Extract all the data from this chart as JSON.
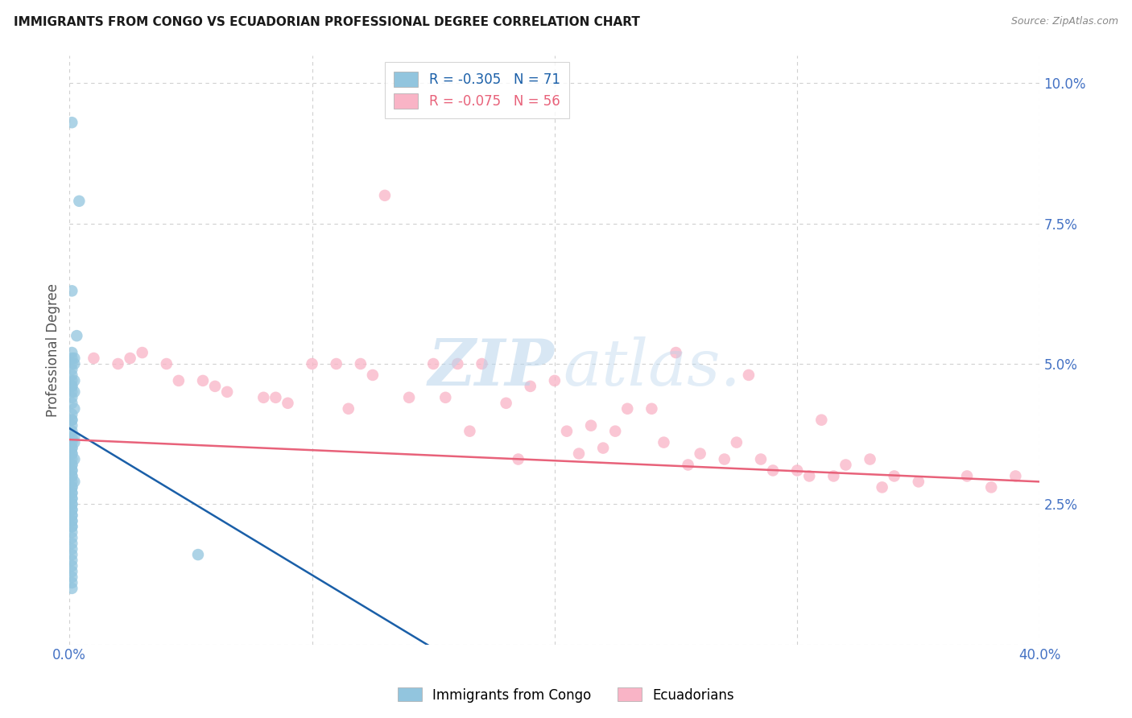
{
  "title": "IMMIGRANTS FROM CONGO VS ECUADORIAN PROFESSIONAL DEGREE CORRELATION CHART",
  "source": "Source: ZipAtlas.com",
  "xlim": [
    0.0,
    0.4
  ],
  "ylim": [
    0.0,
    0.105
  ],
  "xticks": [
    0.0,
    0.1,
    0.2,
    0.3,
    0.4
  ],
  "xticklabels": [
    "0.0%",
    "",
    "",
    "",
    "40.0%"
  ],
  "yticks_right": [
    0.0,
    0.025,
    0.05,
    0.075,
    0.1
  ],
  "yticklabels_right": [
    "",
    "2.5%",
    "5.0%",
    "7.5%",
    "10.0%"
  ],
  "congo_R": -0.305,
  "congo_N": 71,
  "ecuador_R": -0.075,
  "ecuador_N": 56,
  "legend_label_1": "Immigrants from Congo",
  "legend_label_2": "Ecuadorians",
  "ylabel": "Professional Degree",
  "congo_color": "#92c5de",
  "ecuador_color": "#f9b4c6",
  "congo_line_color": "#1a5fa8",
  "ecuador_line_color": "#e8627a",
  "congo_line_x": [
    0.0,
    0.155
  ],
  "congo_line_y": [
    0.0385,
    -0.002
  ],
  "ecuador_line_x": [
    0.0,
    0.4
  ],
  "ecuador_line_y": [
    0.0365,
    0.029
  ],
  "congo_x": [
    0.001,
    0.004,
    0.001,
    0.003,
    0.001,
    0.002,
    0.001,
    0.001,
    0.002,
    0.001,
    0.001,
    0.001,
    0.002,
    0.001,
    0.001,
    0.001,
    0.002,
    0.001,
    0.001,
    0.002,
    0.001,
    0.001,
    0.001,
    0.001,
    0.001,
    0.002,
    0.001,
    0.001,
    0.002,
    0.001,
    0.001,
    0.001,
    0.001,
    0.002,
    0.001,
    0.001,
    0.001,
    0.001,
    0.001,
    0.001,
    0.001,
    0.001,
    0.002,
    0.001,
    0.001,
    0.001,
    0.001,
    0.001,
    0.001,
    0.001,
    0.001,
    0.001,
    0.001,
    0.001,
    0.001,
    0.001,
    0.001,
    0.001,
    0.001,
    0.001,
    0.001,
    0.001,
    0.001,
    0.001,
    0.001,
    0.001,
    0.001,
    0.001,
    0.053,
    0.001,
    0.001
  ],
  "congo_y": [
    0.093,
    0.079,
    0.063,
    0.055,
    0.052,
    0.051,
    0.051,
    0.05,
    0.05,
    0.049,
    0.048,
    0.047,
    0.047,
    0.046,
    0.046,
    0.045,
    0.045,
    0.044,
    0.043,
    0.042,
    0.041,
    0.04,
    0.04,
    0.039,
    0.038,
    0.037,
    0.037,
    0.036,
    0.036,
    0.035,
    0.035,
    0.034,
    0.034,
    0.033,
    0.033,
    0.032,
    0.032,
    0.031,
    0.031,
    0.03,
    0.03,
    0.029,
    0.029,
    0.028,
    0.028,
    0.027,
    0.027,
    0.026,
    0.026,
    0.025,
    0.025,
    0.024,
    0.024,
    0.023,
    0.023,
    0.022,
    0.022,
    0.021,
    0.021,
    0.02,
    0.019,
    0.018,
    0.017,
    0.016,
    0.015,
    0.014,
    0.013,
    0.012,
    0.016,
    0.011,
    0.01
  ],
  "ecuador_x": [
    0.02,
    0.025,
    0.04,
    0.01,
    0.03,
    0.045,
    0.055,
    0.06,
    0.065,
    0.08,
    0.085,
    0.09,
    0.1,
    0.11,
    0.115,
    0.12,
    0.125,
    0.13,
    0.14,
    0.15,
    0.155,
    0.16,
    0.165,
    0.17,
    0.18,
    0.185,
    0.19,
    0.2,
    0.205,
    0.21,
    0.215,
    0.22,
    0.225,
    0.23,
    0.24,
    0.245,
    0.25,
    0.255,
    0.26,
    0.27,
    0.275,
    0.28,
    0.285,
    0.29,
    0.3,
    0.305,
    0.31,
    0.315,
    0.32,
    0.33,
    0.335,
    0.34,
    0.35,
    0.38,
    0.39,
    0.37
  ],
  "ecuador_y": [
    0.05,
    0.051,
    0.05,
    0.051,
    0.052,
    0.047,
    0.047,
    0.046,
    0.045,
    0.044,
    0.044,
    0.043,
    0.05,
    0.05,
    0.042,
    0.05,
    0.048,
    0.08,
    0.044,
    0.05,
    0.044,
    0.05,
    0.038,
    0.05,
    0.043,
    0.033,
    0.046,
    0.047,
    0.038,
    0.034,
    0.039,
    0.035,
    0.038,
    0.042,
    0.042,
    0.036,
    0.052,
    0.032,
    0.034,
    0.033,
    0.036,
    0.048,
    0.033,
    0.031,
    0.031,
    0.03,
    0.04,
    0.03,
    0.032,
    0.033,
    0.028,
    0.03,
    0.029,
    0.028,
    0.03,
    0.03
  ],
  "background_color": "#ffffff",
  "grid_color": "#d0d0d0"
}
